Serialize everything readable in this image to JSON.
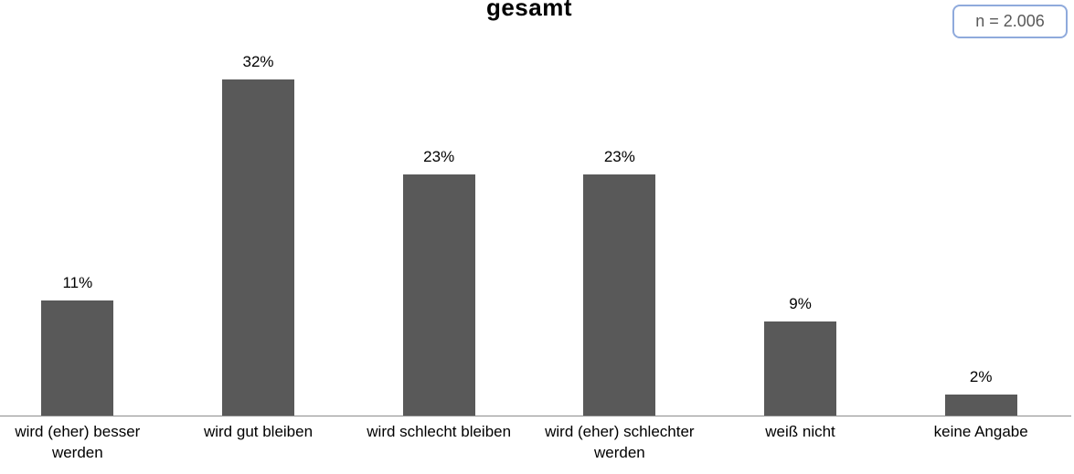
{
  "badge": {
    "label": "n = 2.006"
  },
  "chart_data": {
    "type": "bar",
    "title": "gesamt",
    "categories": [
      "wird (eher) besser werden",
      "wird gut bleiben",
      "wird schlecht bleiben",
      "wird (eher) schlechter werden",
      "weiß nicht",
      "keine Angabe"
    ],
    "values": [
      11,
      32,
      23,
      23,
      9,
      2
    ],
    "value_labels": [
      "11%",
      "32%",
      "23%",
      "23%",
      "9%",
      "2%"
    ],
    "xlabel": "",
    "ylabel": "",
    "ylim": [
      0,
      35
    ],
    "grid": false,
    "legend": false,
    "value_axis_visible": false,
    "bar_color": "#595959",
    "axis_line_color": "#8c8c8c",
    "label_color": "#000000",
    "badge_border_color": "#8faadc",
    "badge_text_color": "#595959"
  }
}
